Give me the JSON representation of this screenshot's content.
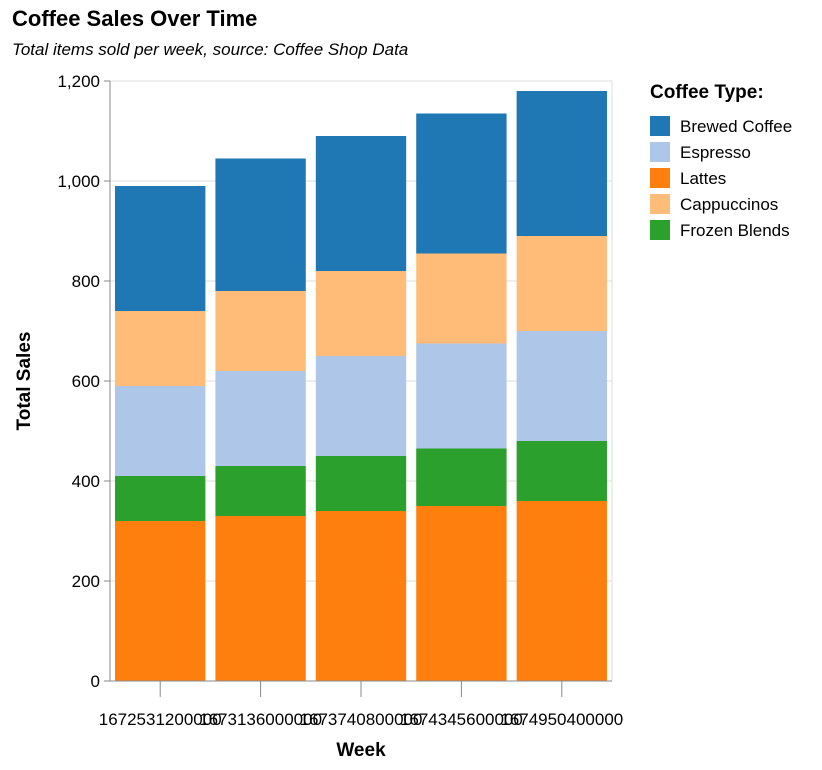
{
  "chart_data": {
    "type": "bar",
    "stacked": true,
    "title": "Coffee Sales Over Time",
    "subtitle": "Total items sold per week, source: Coffee Shop Data",
    "xlabel": "Week",
    "ylabel": "Total Sales",
    "ylim": [
      0,
      1200
    ],
    "yticks": [
      0,
      200,
      400,
      600,
      800,
      1000,
      1200
    ],
    "ytick_labels": [
      "0",
      "200",
      "400",
      "600",
      "800",
      "1,000",
      "1,200"
    ],
    "grid": true,
    "categories": [
      "1672531200000",
      "1673136000000",
      "1673740800000",
      "1674345600000",
      "1674950400000"
    ],
    "legend": {
      "title": "Coffee Type:",
      "placement": "right"
    },
    "series": [
      {
        "name": "Lattes",
        "color": "#ff7f0e",
        "values": [
          320,
          330,
          340,
          350,
          360
        ]
      },
      {
        "name": "Frozen Blends",
        "color": "#2ca02c",
        "values": [
          90,
          100,
          110,
          115,
          120
        ]
      },
      {
        "name": "Espresso",
        "color": "#aec7e8",
        "values": [
          180,
          190,
          200,
          210,
          220
        ]
      },
      {
        "name": "Cappuccinos",
        "color": "#ffbb78",
        "values": [
          150,
          160,
          170,
          180,
          190
        ]
      },
      {
        "name": "Brewed Coffee",
        "color": "#1f77b4",
        "values": [
          250,
          265,
          270,
          280,
          290
        ]
      }
    ],
    "legend_order": [
      "Brewed Coffee",
      "Espresso",
      "Lattes",
      "Cappuccinos",
      "Frozen Blends"
    ]
  }
}
